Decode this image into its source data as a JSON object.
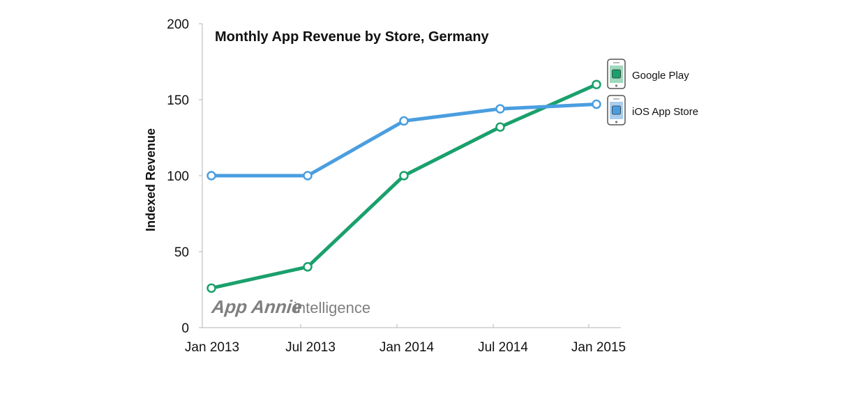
{
  "chart_data": {
    "type": "line",
    "title": "Monthly App Revenue by Store, Germany",
    "xlabel": "",
    "ylabel": "Indexed Revenue",
    "categories": [
      "Jan 2013",
      "Jul 2013",
      "Jan 2014",
      "Jul 2014",
      "Jan 2015"
    ],
    "ylim": [
      0,
      200
    ],
    "yticks": [
      0,
      50,
      100,
      150,
      200
    ],
    "grid": false,
    "legend_position": "right",
    "series": [
      {
        "name": "Google Play",
        "values": [
          26,
          40,
          100,
          132,
          160
        ],
        "color": "#1aa06c",
        "icon": "android-phone-icon"
      },
      {
        "name": "iOS App Store",
        "values": [
          100,
          100,
          136,
          144,
          147
        ],
        "color": "#4a9ee0",
        "icon": "iphone-icon"
      }
    ],
    "watermark": {
      "brand": "App Annie",
      "suffix": "intelligence"
    }
  }
}
